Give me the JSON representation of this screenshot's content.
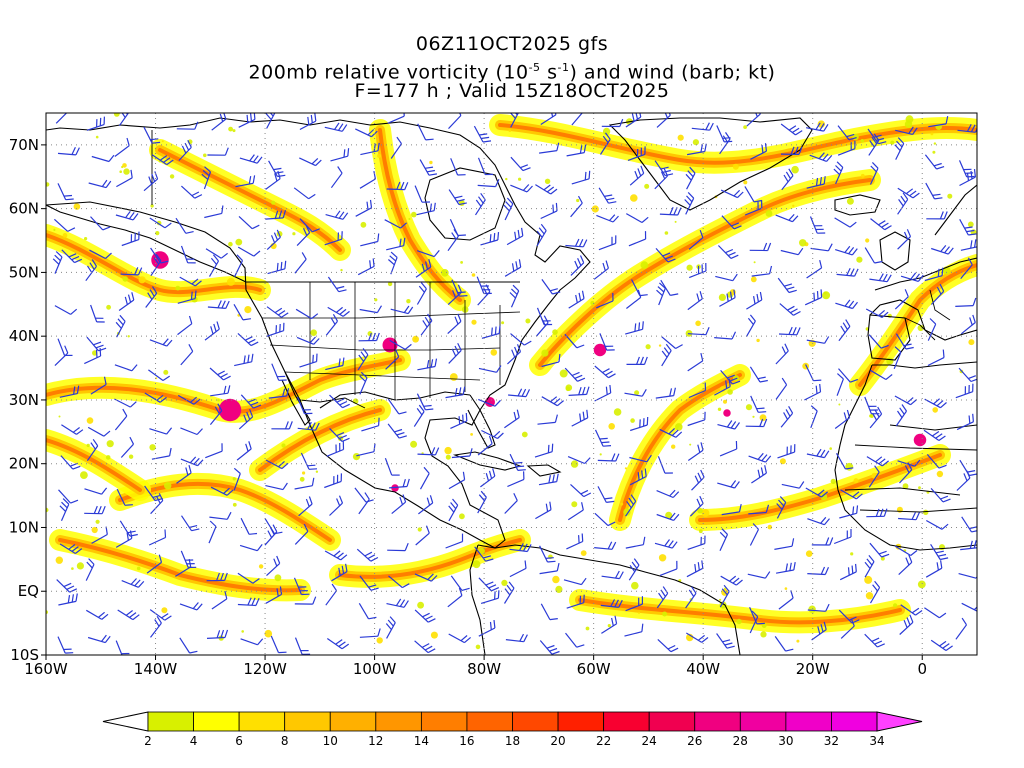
{
  "title": {
    "line1": "06Z11OCT2025 gfs",
    "line2_pre": "200mb relative vorticity (10",
    "line2_exp1": "-5",
    "line2_mid": " s",
    "line2_exp2": "-1",
    "line2_post": ") and wind (barb; kt)",
    "line3": "F=177 h ; Valid 15Z18OCT2025"
  },
  "map": {
    "lon_range": [
      -160,
      10
    ],
    "lat_range": [
      -10,
      75
    ],
    "lon_ticks": [
      "160W",
      "140W",
      "120W",
      "100W",
      "80W",
      "60W",
      "40W",
      "20W",
      "0"
    ],
    "lat_ticks": [
      "70N",
      "60N",
      "50N",
      "40N",
      "30N",
      "20N",
      "10N",
      "EQ",
      "10S"
    ],
    "barb_color": "#2a3ad6",
    "coast_color": "#000000"
  },
  "colorbar": {
    "levels": [
      "2",
      "4",
      "6",
      "8",
      "10",
      "12",
      "14",
      "16",
      "18",
      "20",
      "22",
      "24",
      "26",
      "28",
      "30",
      "32",
      "34"
    ],
    "colors": [
      "#d8f000",
      "#ffff00",
      "#ffe000",
      "#ffc800",
      "#ffb000",
      "#ff9600",
      "#ff7e00",
      "#ff6400",
      "#ff4800",
      "#ff2000",
      "#f80030",
      "#f00050",
      "#f00080",
      "#f000a0",
      "#f000c8",
      "#f000e0"
    ],
    "under_color": "#ffffff",
    "over_color": "#ff40ff"
  }
}
